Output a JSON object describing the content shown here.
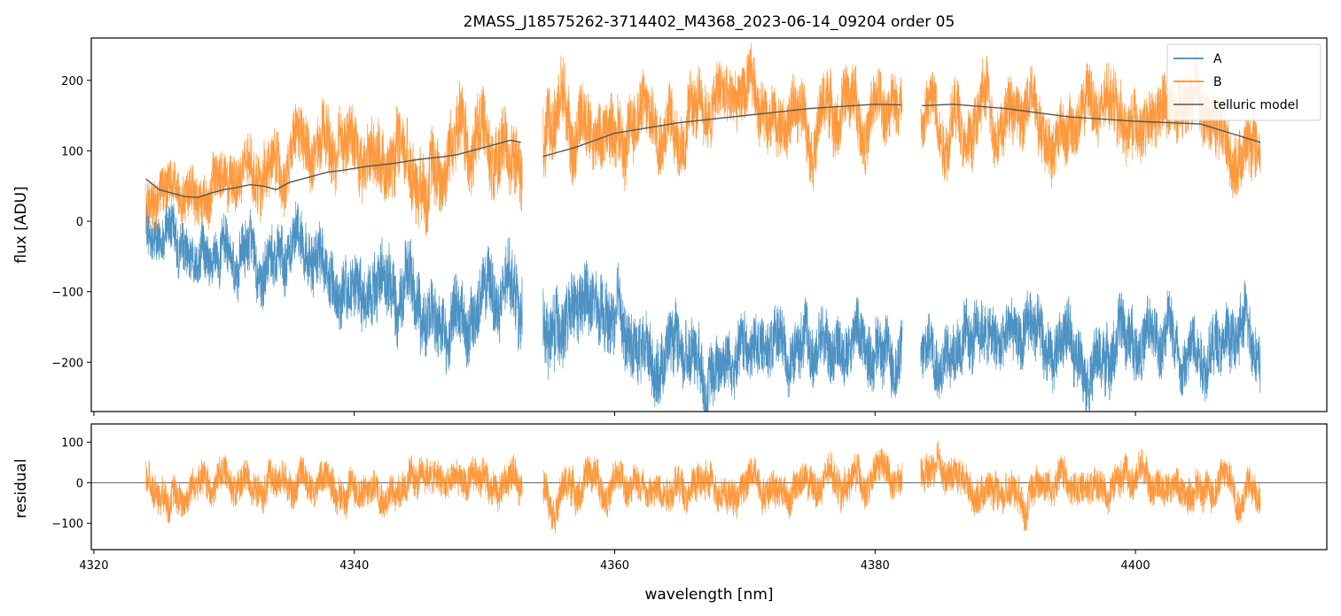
{
  "chart_data": [
    {
      "type": "line",
      "title": "2MASS_J18575262-3714402_M4368_2023-06-14_09204  order 05",
      "xlabel": "",
      "ylabel": "flux [ADU]",
      "xlim": [
        4319.8,
        4414.7
      ],
      "ylim": [
        -270,
        260
      ],
      "yticks": [
        -200,
        -100,
        0,
        100,
        200
      ],
      "yticklabels": [
        "−200",
        "−100",
        "0",
        "100",
        "200"
      ],
      "xticks": [
        4320,
        4340,
        4360,
        4380,
        4400
      ],
      "grid": false,
      "legend": "top-right",
      "gaps": [
        [
          4352.9,
          4354.5
        ],
        [
          4382.1,
          4383.5
        ]
      ],
      "x_range": [
        4324.0,
        4409.6
      ],
      "series": [
        {
          "name": "A",
          "color": "#1f77b4",
          "style": "noisy-spectrum",
          "envelope": [
            {
              "x": 4324,
              "center": -20,
              "halfwidth": 70
            },
            {
              "x": 4330,
              "center": -40,
              "halfwidth": 80
            },
            {
              "x": 4336,
              "center": -70,
              "halfwidth": 90
            },
            {
              "x": 4342,
              "center": -100,
              "halfwidth": 100
            },
            {
              "x": 4348,
              "center": -120,
              "halfwidth": 100
            },
            {
              "x": 4352.8,
              "center": -120,
              "halfwidth": 100
            },
            {
              "x": 4354.5,
              "center": -130,
              "halfwidth": 110
            },
            {
              "x": 4360,
              "center": -170,
              "halfwidth": 100
            },
            {
              "x": 4370,
              "center": -180,
              "halfwidth": 90
            },
            {
              "x": 4382,
              "center": -170,
              "halfwidth": 90
            },
            {
              "x": 4383.6,
              "center": -170,
              "halfwidth": 90
            },
            {
              "x": 4395,
              "center": -170,
              "halfwidth": 90
            },
            {
              "x": 4409.6,
              "center": -160,
              "halfwidth": 90
            }
          ]
        },
        {
          "name": "B",
          "color": "#ff7f0e",
          "style": "noisy-spectrum",
          "envelope": [
            {
              "x": 4324,
              "center": 40,
              "halfwidth": 70
            },
            {
              "x": 4330,
              "center": 60,
              "halfwidth": 80
            },
            {
              "x": 4336,
              "center": 80,
              "halfwidth": 90
            },
            {
              "x": 4342,
              "center": 100,
              "halfwidth": 100
            },
            {
              "x": 4348,
              "center": 110,
              "halfwidth": 110
            },
            {
              "x": 4352.8,
              "center": 110,
              "halfwidth": 110
            },
            {
              "x": 4354.5,
              "center": 120,
              "halfwidth": 110
            },
            {
              "x": 4360,
              "center": 150,
              "halfwidth": 100
            },
            {
              "x": 4370,
              "center": 160,
              "halfwidth": 90
            },
            {
              "x": 4382,
              "center": 165,
              "halfwidth": 90
            },
            {
              "x": 4383.6,
              "center": 160,
              "halfwidth": 90
            },
            {
              "x": 4395,
              "center": 155,
              "halfwidth": 90
            },
            {
              "x": 4409.6,
              "center": 120,
              "halfwidth": 90
            }
          ]
        },
        {
          "name": "telluric model",
          "color": "#555555",
          "style": "smooth",
          "x": [
            4324,
            4325,
            4326,
            4327,
            4328,
            4329,
            4330,
            4331,
            4332,
            4333,
            4334,
            4335,
            4336,
            4337,
            4338,
            4339,
            4340,
            4341,
            4342,
            4343,
            4344,
            4345,
            4346,
            4347,
            4348,
            4349,
            4350,
            4351,
            4352,
            4352.8,
            null,
            4354.5,
            4357,
            4360,
            4365,
            4370,
            4375,
            4380,
            4382,
            null,
            4383.6,
            4386,
            4390,
            4395,
            4400,
            4405,
            4409.6
          ],
          "y": [
            60,
            45,
            40,
            35,
            34,
            40,
            45,
            48,
            52,
            50,
            45,
            55,
            60,
            65,
            70,
            72,
            75,
            78,
            80,
            82,
            85,
            88,
            90,
            92,
            95,
            100,
            105,
            110,
            115,
            112,
            null,
            92,
            105,
            125,
            140,
            150,
            160,
            166,
            165,
            null,
            164,
            166,
            160,
            148,
            142,
            138,
            112
          ]
        }
      ]
    },
    {
      "type": "line",
      "title": "",
      "xlabel": "wavelength [nm]",
      "ylabel": "residual",
      "xlim": [
        4319.8,
        4414.7
      ],
      "ylim": [
        -165,
        145
      ],
      "yticks": [
        -100,
        0,
        100
      ],
      "yticklabels": [
        "−100",
        "0",
        "100"
      ],
      "xticks": [
        4320,
        4340,
        4360,
        4380,
        4400
      ],
      "xticklabels": [
        "4320",
        "4340",
        "4360",
        "4380",
        "4400"
      ],
      "grid": false,
      "zero_line": true,
      "x_range": [
        4324.0,
        4409.6
      ],
      "gaps": [
        [
          4352.9,
          4354.5
        ],
        [
          4382.1,
          4383.5
        ]
      ],
      "series": [
        {
          "name": "",
          "color": "#ff7f0e",
          "style": "noisy-spectrum",
          "envelope": [
            {
              "x": 4324,
              "center": 0,
              "halfwidth": 90
            },
            {
              "x": 4409.6,
              "center": 0,
              "halfwidth": 90
            }
          ]
        }
      ]
    }
  ]
}
